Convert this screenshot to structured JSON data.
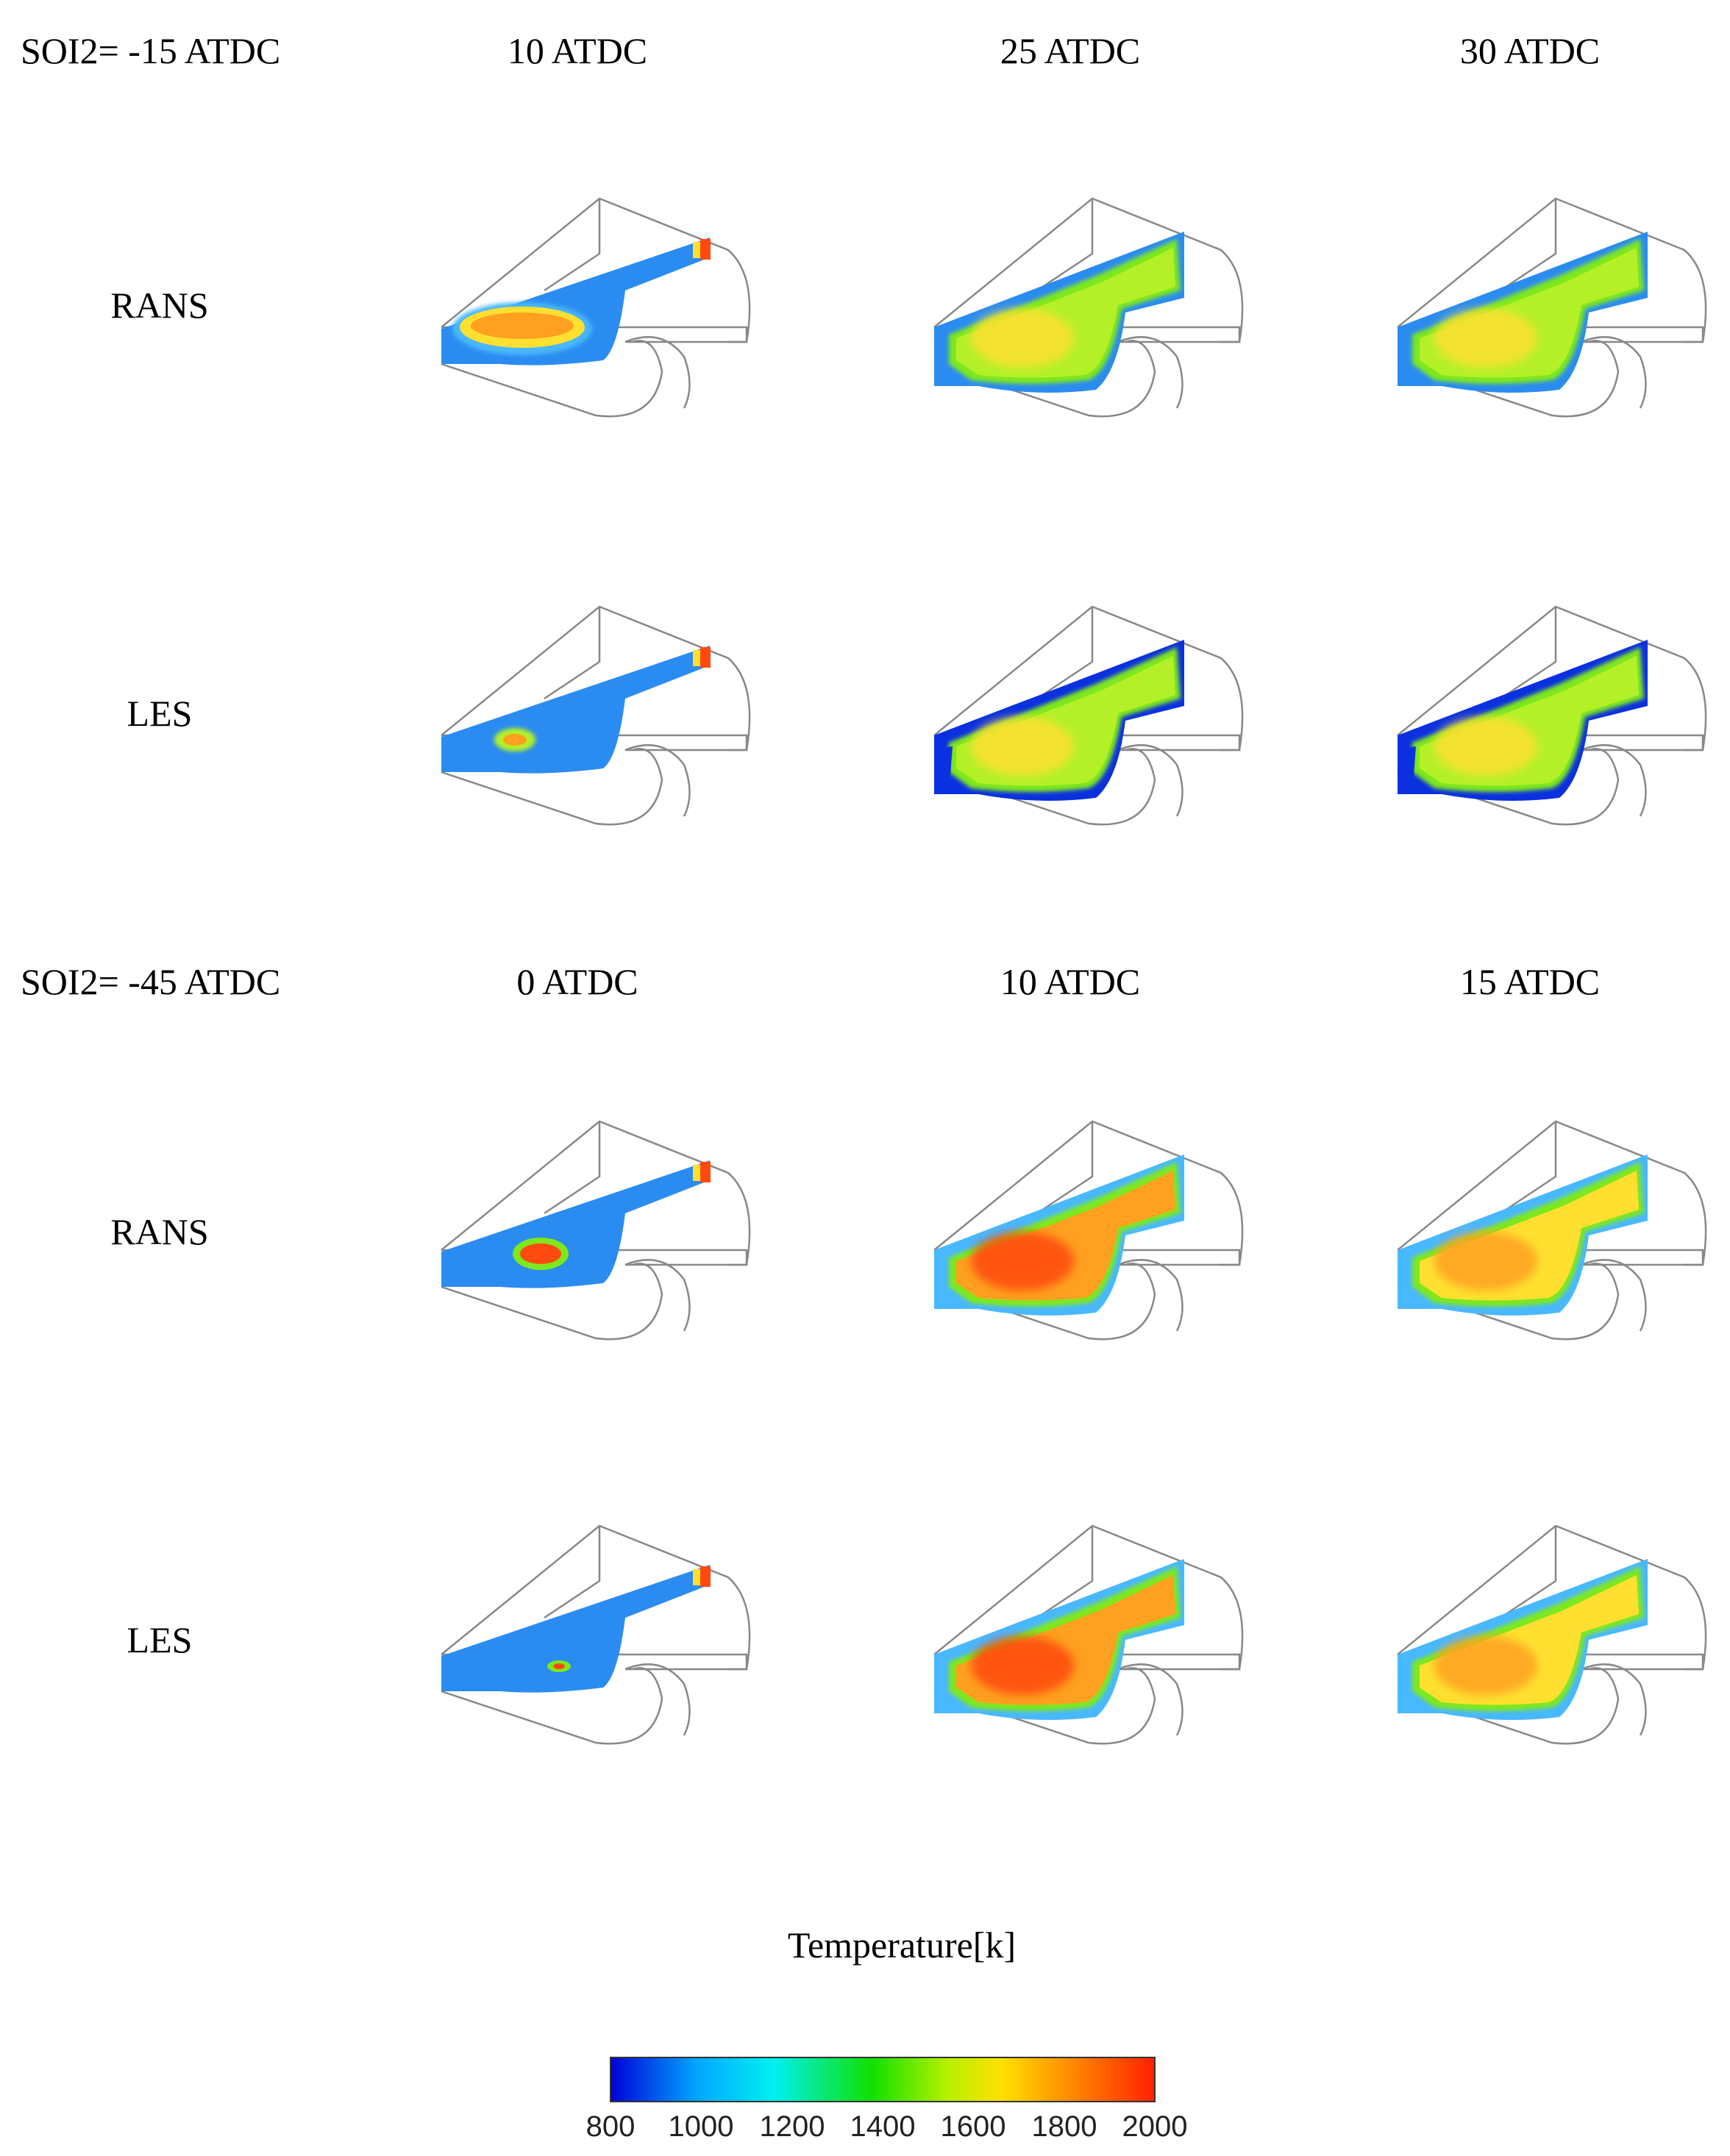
{
  "sections": [
    {
      "soi_label": "SOI2= -15 ATDC",
      "times": [
        "10 ATDC",
        "25 ATDC",
        "30 ATDC"
      ],
      "rows": [
        "RANS",
        "LES"
      ]
    },
    {
      "soi_label": "SOI2= -45 ATDC",
      "times": [
        "0 ATDC",
        "10 ATDC",
        "15 ATDC"
      ],
      "rows": [
        "RANS",
        "LES"
      ]
    }
  ],
  "colorbar": {
    "title": "Temperature[k]",
    "ticks": [
      "800",
      "1000",
      "1200",
      "1400",
      "1600",
      "1800",
      "2000"
    ],
    "colors": [
      "#0000d8",
      "#00a8ff",
      "#00f0f0",
      "#10e000",
      "#b8f000",
      "#ffe000",
      "#ff8000",
      "#ff2000"
    ]
  },
  "palette": {
    "cold": "#2a8cf0",
    "cool": "#48b8ff",
    "deep": "#0a30e0",
    "green": "#7ee81c",
    "lime": "#b4f028",
    "yellow": "#ffe030",
    "orange": "#ffa020",
    "red": "#ff4a10",
    "outline": "#888888"
  }
}
